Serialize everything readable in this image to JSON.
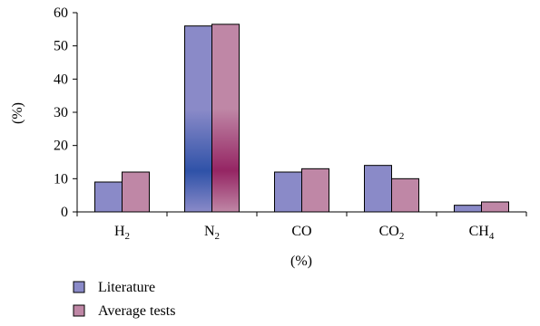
{
  "chart_data": {
    "type": "bar",
    "categories": [
      "H2",
      "N2",
      "CO",
      "CO2",
      "CH4"
    ],
    "category_labels": [
      {
        "base": "H",
        "sub": "2"
      },
      {
        "base": "N",
        "sub": "2"
      },
      {
        "base": "CO",
        "sub": ""
      },
      {
        "base": "CO",
        "sub": "2"
      },
      {
        "base": "CH",
        "sub": "4"
      }
    ],
    "series": [
      {
        "name": "Literature",
        "values": [
          9,
          56,
          12,
          14,
          2
        ],
        "color": "#8a8ac8",
        "highlight_color": "#2f52a8"
      },
      {
        "name": "Average tests",
        "values": [
          12,
          56.5,
          13,
          10,
          3
        ],
        "color": "#bf87a6",
        "highlight_color": "#952563"
      }
    ],
    "highlighted_category": "N2",
    "xlabel": "(%)",
    "ylabel": "(%)",
    "ylim": [
      0,
      60
    ],
    "yticks": [
      0,
      10,
      20,
      30,
      40,
      50,
      60
    ],
    "grid": false,
    "legend_position": "bottom-left"
  }
}
